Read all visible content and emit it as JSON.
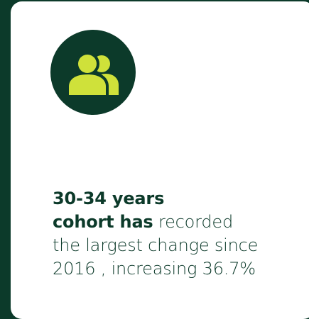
{
  "card": {
    "icon": "users-icon",
    "icon_color": "#cfe13a",
    "circle_color": "#0c3a2a",
    "bold_line1": "30-34 years",
    "bold_line2": "cohort has",
    "text_after_bold": " recorded",
    "line3": "the largest change since",
    "line4": "2016 , increasing 36.7%"
  }
}
